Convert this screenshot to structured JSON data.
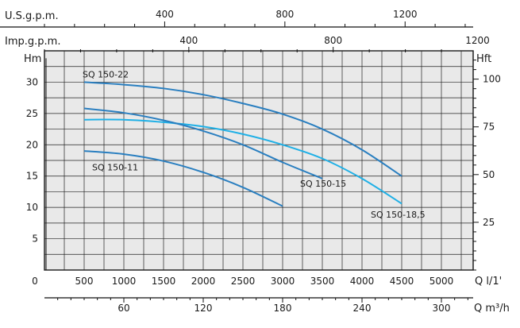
{
  "chart_data": {
    "type": "line",
    "units": {
      "left": "Hm",
      "right": "Hft",
      "top_us": "U.S.g.p.m.",
      "top_imp": "Imp.g.p.m.",
      "bottom_main": "Q l/1'",
      "bottom_m3h": "Q m³/h"
    },
    "axes": {
      "x_main": {
        "ticks": [
          0,
          500,
          1000,
          1500,
          2000,
          2500,
          3000,
          3500,
          4000,
          4500,
          5000
        ],
        "range": [
          0,
          5400
        ]
      },
      "x_us": {
        "ticks": [
          400,
          800,
          1200
        ],
        "labels": [
          "400",
          "800",
          "1200"
        ]
      },
      "x_imp": {
        "ticks": [
          400,
          800,
          1200
        ],
        "labels": [
          "400",
          "800",
          "1200"
        ]
      },
      "x_m3h": {
        "ticks": [
          60,
          120,
          180,
          240,
          300
        ],
        "labels": [
          "60",
          "120",
          "180",
          "240",
          "300"
        ]
      },
      "y_left": {
        "ticks": [
          5,
          10,
          15,
          20,
          25,
          30
        ],
        "range": [
          0,
          35
        ]
      },
      "y_right": {
        "ticks": [
          25,
          50,
          75,
          100
        ],
        "labels": [
          "25",
          "50",
          "75",
          "100"
        ]
      }
    },
    "grid": true,
    "series": [
      {
        "name": "SQ 150-22",
        "color": "#2a7fc0",
        "x": [
          500,
          1000,
          1500,
          2000,
          2500,
          3000,
          3500,
          4000,
          4500
        ],
        "y": [
          30,
          29.6,
          29,
          28,
          26.6,
          24.9,
          22.5,
          19.2,
          15
        ]
      },
      {
        "name": "SQ 150-18,5",
        "color": "#20b0e6",
        "x": [
          500,
          1000,
          1500,
          2000,
          2500,
          3000,
          3500,
          4000,
          4500
        ],
        "y": [
          24,
          24,
          23.6,
          22.9,
          21.7,
          20,
          17.8,
          14.6,
          10.6
        ]
      },
      {
        "name": "SQ 150-15",
        "color": "#2a7fc0",
        "x": [
          500,
          1000,
          1500,
          2000,
          2500,
          3000,
          3500
        ],
        "y": [
          25.8,
          25.1,
          23.9,
          22.2,
          20,
          17.2,
          14.6
        ]
      },
      {
        "name": "SQ 150-11",
        "color": "#2a7fc0",
        "x": [
          500,
          1000,
          1500,
          2000,
          2500,
          3000
        ],
        "y": [
          19,
          18.5,
          17.4,
          15.6,
          13.2,
          10.2
        ]
      }
    ]
  }
}
